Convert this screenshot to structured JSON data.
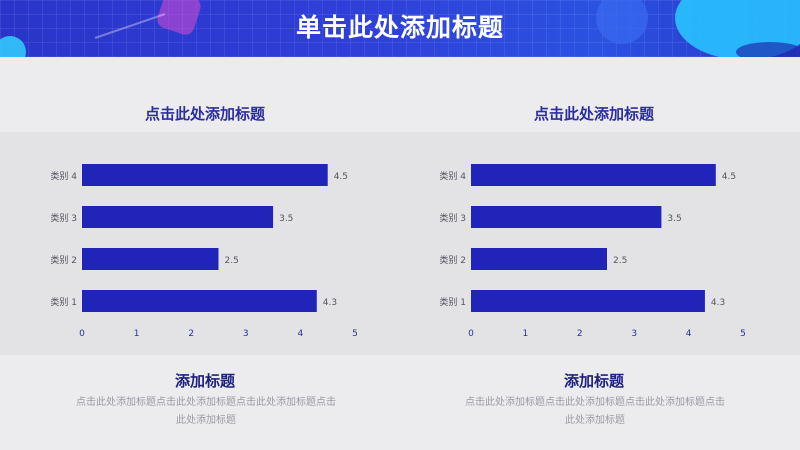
{
  "header": {
    "title": "单击此处添加标题"
  },
  "colors": {
    "bar": "#2124b8",
    "accent": "#2b2f9e",
    "axis_text": "#2b2f9e",
    "category_text": "#555560"
  },
  "charts": [
    {
      "title": "点击此处添加标题",
      "footer_title": "添加标题",
      "footer_text": "点击此处添加标题点击此处添加标题点击此处添加标题点击此处添加标题"
    },
    {
      "title": "点击此处添加标题",
      "footer_title": "添加标题",
      "footer_text": "点击此处添加标题点击此处添加标题点击此处添加标题点击此处添加标题"
    }
  ],
  "chart_data": [
    {
      "type": "bar",
      "orientation": "horizontal",
      "title": "点击此处添加标题",
      "categories": [
        "类别 4",
        "类别 3",
        "类别 2",
        "类别 1"
      ],
      "values": [
        4.5,
        3.5,
        2.5,
        4.3
      ],
      "value_labels": [
        "4.5",
        "3.5",
        "2.5",
        "4.3"
      ],
      "x_ticks": [
        "0",
        "1",
        "2",
        "3",
        "4",
        "5"
      ],
      "xlim": [
        0,
        5
      ],
      "grid": false,
      "legend": "none"
    },
    {
      "type": "bar",
      "orientation": "horizontal",
      "title": "点击此处添加标题",
      "categories": [
        "类别 4",
        "类别 3",
        "类别 2",
        "类别 1"
      ],
      "values": [
        4.5,
        3.5,
        2.5,
        4.3
      ],
      "value_labels": [
        "4.5",
        "3.5",
        "2.5",
        "4.3"
      ],
      "x_ticks": [
        "0",
        "1",
        "2",
        "3",
        "4",
        "5"
      ],
      "xlim": [
        0,
        5
      ],
      "grid": false,
      "legend": "none"
    }
  ]
}
